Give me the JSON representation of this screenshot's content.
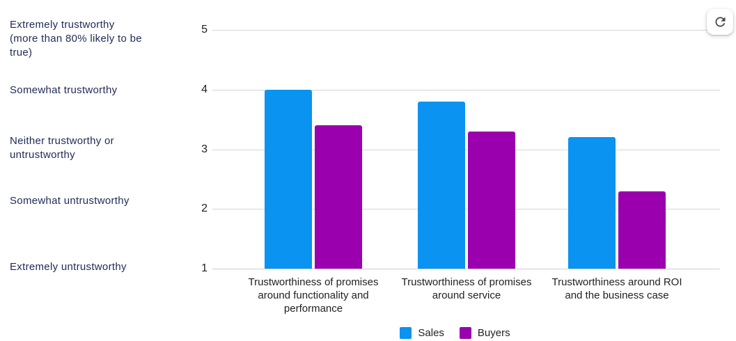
{
  "chart_data": {
    "type": "bar",
    "categories": [
      "Trustworthiness of promises around functionality and performance",
      "Trustworthiness of promises around service",
      "Trustworthiness around ROI and the business case"
    ],
    "category_display": [
      "Trustworthiness of promises\naround functionality and\nperformance",
      "Trustworthiness of promises\naround service",
      "Trustworthiness around ROI\nand the business case"
    ],
    "series": [
      {
        "name": "Sales",
        "color": "#0a93f0",
        "values": [
          4.0,
          3.8,
          3.2
        ]
      },
      {
        "name": "Buyers",
        "color": "#9a00ad",
        "values": [
          3.4,
          3.3,
          2.3
        ]
      }
    ],
    "ylim": [
      1,
      5
    ],
    "yticks": [
      1,
      2,
      3,
      4,
      5
    ],
    "grid": true,
    "legend_position": "bottom",
    "title": "",
    "xlabel": "",
    "ylabel": ""
  },
  "scale_labels": [
    {
      "value": 5,
      "label": "Extremely trustworthy\n(more than 80% likely to be\ntrue)"
    },
    {
      "value": 4,
      "label": "Somewhat trustworthy"
    },
    {
      "value": 3,
      "label": "Neither trustworthy or\n untrustworthy"
    },
    {
      "value": 2,
      "label": "Somewhat untrustworthy"
    },
    {
      "value": 1,
      "label": "Extremely untrustworthy"
    }
  ],
  "toolbar": {
    "refresh_icon": "refresh"
  },
  "colors": {
    "sales": "#0a93f0",
    "buyers": "#9a00ad",
    "scale_label_text": "#1f2a56",
    "axis_text": "#1f1f1f",
    "gridline": "#d6d6d6"
  }
}
